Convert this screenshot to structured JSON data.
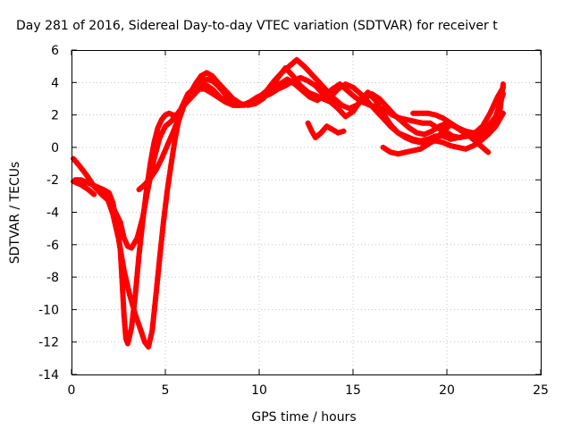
{
  "chart_data": {
    "type": "scatter",
    "title": "Day 281 of 2016, Sidereal Day-to-day VTEC variation (SDTVAR) for receiver t",
    "xlabel": "GPS time / hours",
    "ylabel": "SDTVAR / TECUs",
    "xlim": [
      0,
      25
    ],
    "ylim": [
      -14,
      6
    ],
    "x_ticks": [
      "0",
      "5",
      "10",
      "15",
      "20",
      "25"
    ],
    "y_ticks": [
      "-14",
      "-12",
      "-10",
      "-8",
      "-6",
      "-4",
      "-2",
      "0",
      "2",
      "4",
      "6"
    ],
    "grid": true,
    "marker": "plus",
    "color": "#ff0000",
    "series": [
      {
        "x": [
          0.1,
          0.4,
          0.8,
          1.2,
          1.6,
          2.0,
          2.3,
          2.6,
          2.8,
          3.0,
          3.2,
          3.5,
          3.8,
          4.1,
          4.4,
          4.7,
          5.0,
          5.3,
          5.6,
          6.0,
          6.4,
          6.8,
          7.1,
          7.4,
          7.8,
          8.2,
          8.6,
          9.0,
          9.4,
          9.8,
          10.2,
          10.6,
          11.0,
          11.4,
          11.8,
          12.2,
          12.6,
          13.0,
          13.4,
          13.8,
          14.2,
          14.6,
          15.0,
          15.4,
          15.8,
          16.2,
          16.6,
          17.0,
          17.4,
          17.8,
          18.2,
          18.6,
          19.0,
          19.4,
          19.8,
          20.2,
          20.6,
          21.0,
          21.4,
          21.8,
          22.2,
          22.6,
          23.0
        ],
        "y": [
          -0.7,
          -1.1,
          -1.7,
          -2.4,
          -2.9,
          -3.3,
          -3.9,
          -4.6,
          -5.6,
          -6.1,
          -6.2,
          -5.6,
          -4.3,
          -2.4,
          -0.7,
          0.6,
          1.3,
          1.6,
          2.0,
          2.6,
          3.1,
          3.6,
          3.6,
          3.4,
          3.1,
          2.8,
          2.6,
          2.6,
          2.7,
          2.8,
          3.1,
          3.3,
          3.6,
          3.8,
          4.1,
          4.3,
          4.1,
          3.8,
          3.3,
          3.1,
          3.6,
          3.9,
          3.7,
          3.3,
          2.8,
          2.3,
          1.8,
          1.3,
          0.9,
          0.7,
          0.5,
          0.4,
          0.5,
          0.7,
          0.7,
          0.5,
          0.6,
          0.7,
          0.8,
          1.0,
          1.3,
          1.9,
          3.3
        ]
      },
      {
        "x": [
          0.2,
          0.5,
          0.9,
          1.3,
          1.7,
          2.0,
          2.2,
          2.4,
          2.6,
          2.7,
          2.8,
          2.9,
          3.0,
          3.2,
          3.4,
          3.6,
          3.8,
          4.0,
          4.2,
          4.4,
          4.6,
          4.8,
          5.0,
          5.2,
          5.4,
          5.6,
          5.8,
          6.0,
          6.2,
          6.5,
          6.8,
          7.1,
          7.5,
          7.9,
          8.3,
          8.7,
          9.1,
          9.5,
          9.9,
          10.3,
          10.7,
          11.1,
          11.5,
          11.9,
          12.3,
          12.7,
          13.1,
          13.5,
          13.9,
          14.3,
          14.7,
          15.1,
          15.5,
          15.9,
          16.3,
          16.7,
          17.1,
          17.5,
          17.9,
          18.3,
          18.7,
          19.1,
          19.5,
          19.9,
          20.3,
          20.7,
          21.1,
          21.5,
          21.9,
          22.3,
          22.7,
          23.0
        ],
        "y": [
          -2.0,
          -2.0,
          -2.2,
          -2.4,
          -2.6,
          -2.8,
          -3.4,
          -4.6,
          -6.3,
          -8.3,
          -10.4,
          -11.8,
          -12.1,
          -11.1,
          -9.1,
          -6.6,
          -4.5,
          -2.6,
          -1.0,
          0.3,
          1.2,
          1.7,
          2.0,
          2.1,
          2.0,
          2.0,
          2.3,
          2.8,
          3.3,
          3.6,
          3.8,
          3.9,
          3.6,
          3.1,
          2.8,
          2.6,
          2.6,
          2.8,
          3.1,
          3.3,
          3.6,
          3.9,
          4.2,
          3.9,
          3.5,
          3.1,
          2.9,
          3.2,
          3.6,
          3.9,
          3.5,
          3.1,
          2.8,
          2.6,
          2.5,
          2.3,
          2.0,
          1.8,
          1.7,
          1.6,
          1.5,
          1.5,
          1.2,
          1.0,
          0.7,
          0.6,
          0.7,
          0.9,
          1.3,
          2.1,
          3.1,
          3.7
        ]
      },
      {
        "x": [
          1.6,
          1.9,
          2.2,
          2.5,
          2.8,
          3.1,
          3.4,
          3.7,
          3.9,
          4.1,
          4.3,
          4.5,
          4.7,
          4.9,
          5.1,
          5.3,
          5.5,
          5.7,
          6.0,
          6.3,
          6.6,
          6.9,
          7.2,
          7.5,
          7.8,
          8.1,
          8.4,
          8.8,
          9.2,
          9.6,
          10.0,
          10.4,
          10.8,
          11.2,
          11.6,
          12.0,
          12.4,
          12.8,
          13.2,
          13.6,
          14.0,
          14.4,
          14.8,
          15.2,
          15.6,
          16.0,
          16.4,
          16.8,
          17.2,
          17.6,
          18.0,
          18.4,
          18.8,
          19.2,
          19.6,
          20.0,
          20.4,
          20.8,
          21.2,
          21.6,
          22.0,
          22.4,
          22.8,
          23.0
        ],
        "y": [
          -2.6,
          -3.1,
          -4.1,
          -5.6,
          -7.6,
          -9.1,
          -10.3,
          -11.3,
          -12.0,
          -12.3,
          -11.3,
          -9.1,
          -6.8,
          -4.6,
          -2.7,
          -1.1,
          0.4,
          1.6,
          2.6,
          3.3,
          3.8,
          4.1,
          4.2,
          4.1,
          3.8,
          3.4,
          3.0,
          2.7,
          2.6,
          2.8,
          3.1,
          3.5,
          4.1,
          4.6,
          5.0,
          5.4,
          5.0,
          4.5,
          4.0,
          3.5,
          3.0,
          2.6,
          2.4,
          2.6,
          3.0,
          3.3,
          3.0,
          2.5,
          2.0,
          1.6,
          1.2,
          0.9,
          0.8,
          1.0,
          1.3,
          1.5,
          1.3,
          1.0,
          0.7,
          0.6,
          0.8,
          1.2,
          2.0,
          3.9
        ]
      },
      {
        "x": [
          3.6,
          3.9,
          4.2,
          4.5,
          4.8,
          5.1,
          5.4,
          5.7,
          6.0,
          6.3,
          6.6,
          6.9,
          7.2,
          7.5,
          7.8,
          8.2,
          8.6,
          9.0,
          9.4,
          9.8,
          10.2,
          10.6,
          11.0,
          11.4,
          11.8,
          12.2,
          12.6,
          13.0,
          13.4,
          13.8,
          14.2,
          14.6,
          15.0,
          15.4,
          15.8,
          16.2,
          16.6,
          17.0,
          17.4,
          17.8,
          18.2,
          18.6,
          19.0,
          19.4,
          19.8,
          20.2,
          20.6,
          21.0,
          21.4,
          21.8,
          22.2,
          22.6,
          23.0
        ],
        "y": [
          -2.6,
          -2.3,
          -1.9,
          -1.4,
          -0.7,
          0.1,
          0.9,
          1.8,
          2.6,
          3.3,
          3.9,
          4.4,
          4.6,
          4.4,
          4.0,
          3.5,
          3.0,
          2.7,
          2.6,
          2.7,
          3.0,
          3.5,
          4.3,
          4.9,
          4.4,
          3.8,
          3.4,
          3.2,
          3.0,
          2.8,
          2.4,
          1.9,
          2.2,
          2.9,
          3.4,
          2.9,
          2.1,
          1.4,
          0.9,
          0.6,
          0.4,
          0.3,
          0.3,
          0.4,
          0.3,
          0.1,
          0.0,
          -0.1,
          0.1,
          0.4,
          0.8,
          1.3,
          2.1
        ]
      },
      {
        "x": [
          12.6,
          12.8,
          13.0,
          13.3,
          13.6,
          13.9,
          14.2,
          14.5
        ],
        "y": [
          1.5,
          1.0,
          0.6,
          0.9,
          1.3,
          1.1,
          0.9,
          1.0
        ]
      },
      {
        "x": [
          16.6,
          17.0,
          17.4,
          17.8,
          18.2,
          18.6,
          19.0,
          19.4,
          19.8,
          20.2,
          20.6,
          21.0,
          21.4,
          21.8,
          22.2
        ],
        "y": [
          0.0,
          -0.3,
          -0.4,
          -0.3,
          -0.2,
          -0.1,
          0.2,
          0.5,
          1.0,
          1.4,
          1.2,
          0.9,
          0.5,
          0.1,
          -0.3
        ]
      },
      {
        "x": [
          18.2,
          18.6,
          19.0,
          19.4,
          19.8,
          20.2,
          20.6,
          21.0,
          21.4,
          21.8,
          22.2
        ],
        "y": [
          2.1,
          2.1,
          2.1,
          2.0,
          1.8,
          1.5,
          1.2,
          1.0,
          0.9,
          1.0,
          1.1
        ]
      },
      {
        "x": [
          0.1,
          0.5,
          0.9,
          1.2
        ],
        "y": [
          -2.1,
          -2.3,
          -2.6,
          -2.9
        ]
      }
    ]
  }
}
